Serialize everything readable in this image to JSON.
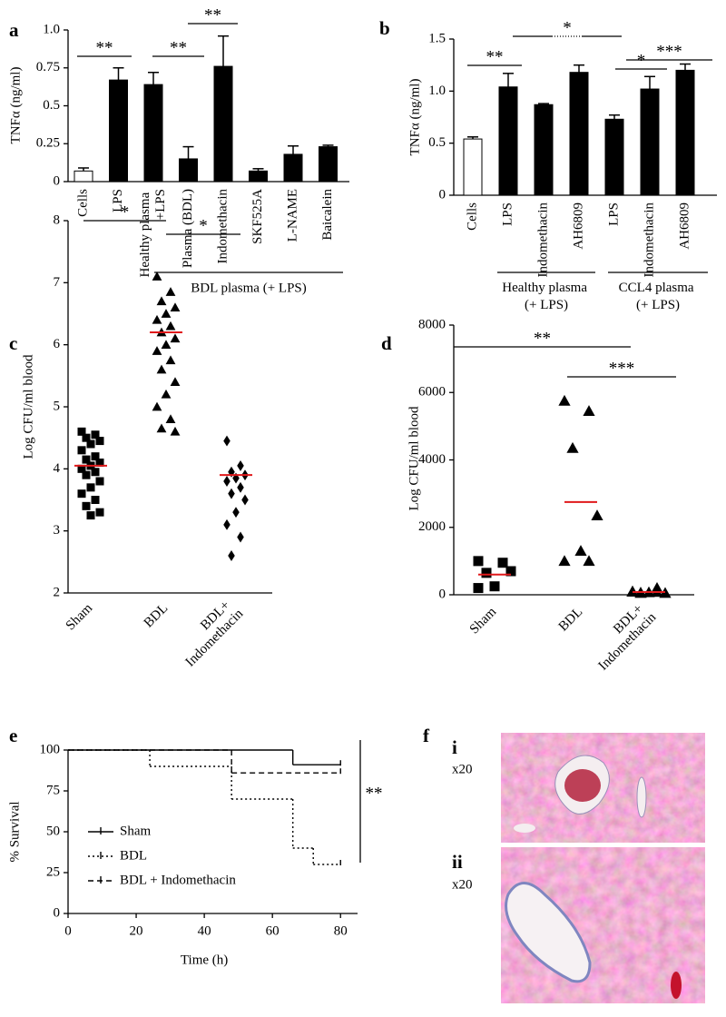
{
  "chart_data": [
    {
      "type": "bar",
      "panel_label": "a",
      "y_label": "TNFα (ng/ml)",
      "categories": [
        "Cells",
        "LPS",
        "Healthy plasma +LPS",
        "Plasma (BDL)",
        "Indomethacin",
        "SKF525A",
        "L-NAME",
        "Baicalein"
      ],
      "values": [
        0.07,
        0.67,
        0.64,
        0.15,
        0.76,
        0.07,
        0.18,
        0.23
      ],
      "errors": [
        0.02,
        0.08,
        0.08,
        0.08,
        0.2,
        0.015,
        0.055,
        0.01
      ],
      "colors": [
        "#ffffff",
        "#000000",
        "#000000",
        "#000000",
        "#000000",
        "#000000",
        "#000000",
        "#000000"
      ],
      "ylim": [
        0,
        1
      ],
      "yticks": [
        0,
        0.25,
        0.5,
        0.75,
        {
          "value": 1,
          "label": "1.0"
        }
      ],
      "groups": [
        "BDL plasma (+ LPS)"
      ],
      "annotations": [
        "**",
        "**",
        "**"
      ]
    },
    {
      "type": "bar",
      "panel_label": "b",
      "y_label": "TNFα (ng/ml)",
      "categories": [
        "Cells",
        "LPS",
        "Indomethacin",
        "AH6809",
        "LPS",
        "Indomethacin",
        "AH6809"
      ],
      "values": [
        0.54,
        1.04,
        0.87,
        1.18,
        0.73,
        1.02,
        1.2
      ],
      "errors": [
        0.02,
        0.13,
        0.01,
        0.07,
        0.04,
        0.12,
        0.06
      ],
      "colors": [
        "#ffffff",
        "#000000",
        "#000000",
        "#000000",
        "#000000",
        "#000000",
        "#000000"
      ],
      "ylim": [
        0,
        1.5
      ],
      "yticks": [
        0,
        0.5,
        {
          "value": 1,
          "label": "1.0"
        },
        1.5
      ],
      "groups": [
        "Healthy plasma (+ LPS)",
        "CCL4 plasma (+ LPS)"
      ],
      "annotations": [
        "**",
        "*",
        "***",
        "*"
      ]
    },
    {
      "type": "strip",
      "panel_label": "c",
      "y_label": "Log CFU/ml blood",
      "categories": [
        "Sham",
        "BDL",
        "BDL+ Indomethacin"
      ],
      "markers": [
        "square",
        "triangle",
        "diamond"
      ],
      "values": [
        [
          4.6,
          4.55,
          4.5,
          4.45,
          4.4,
          4.3,
          4.2,
          4.15,
          4.1,
          4.05,
          4.0,
          3.95,
          3.9,
          3.8,
          3.7,
          3.6,
          3.5,
          3.4,
          3.3,
          3.25
        ],
        [
          7.1,
          6.85,
          6.7,
          6.6,
          6.5,
          6.4,
          6.3,
          6.2,
          6.1,
          6.0,
          5.9,
          5.75,
          5.6,
          5.4,
          5.2,
          5.0,
          4.8,
          4.65,
          4.6
        ],
        [
          4.45,
          4.05,
          3.95,
          3.9,
          3.85,
          3.8,
          3.7,
          3.6,
          3.5,
          3.3,
          3.1,
          2.9,
          2.6
        ]
      ],
      "means": [
        4.05,
        6.2,
        3.9
      ],
      "mean_color": "#e0191b",
      "ylim": [
        2,
        8
      ],
      "yticks": [
        2,
        3,
        4,
        5,
        6,
        7,
        8
      ],
      "annotations": [
        "*",
        "*"
      ]
    },
    {
      "type": "strip",
      "panel_label": "d",
      "y_label": "Log CFU/ml blood",
      "categories": [
        "Sham",
        "BDL",
        "BDL+ Indomethacin"
      ],
      "markers": [
        "square",
        "triangle",
        "triangle"
      ],
      "values": [
        [
          1000,
          950,
          650,
          700,
          250,
          200
        ],
        [
          5750,
          5450,
          4350,
          2350,
          1300,
          1000,
          1000
        ],
        [
          100,
          80,
          60,
          50,
          70,
          90,
          200,
          50
        ]
      ],
      "means": [
        600,
        2750,
        80
      ],
      "mean_color": "#e0191b",
      "ylim": [
        0,
        8000
      ],
      "yticks": [
        0,
        2000,
        4000,
        6000,
        8000
      ],
      "annotations": [
        "**",
        "***"
      ]
    },
    {
      "type": "step",
      "panel_label": "e",
      "y_label": "% Survival",
      "x_label": "Time (h)",
      "series": [
        {
          "name": "Sham",
          "line_style": "solid",
          "x": [
            0,
            66,
            80
          ],
          "values": [
            100,
            91,
            91
          ]
        },
        {
          "name": "BDL",
          "line_style": "dotted",
          "x": [
            0,
            24,
            48,
            66,
            72,
            80
          ],
          "values": [
            100,
            90,
            70,
            40,
            30,
            30
          ]
        },
        {
          "name": "BDL + Indomethacin",
          "line_style": "dashed",
          "x": [
            0,
            48,
            80
          ],
          "values": [
            100,
            86,
            86
          ]
        }
      ],
      "xlim": [
        0,
        85
      ],
      "xticks": [
        0,
        20,
        40,
        60,
        80
      ],
      "ylim": [
        0,
        100
      ],
      "yticks": [
        0,
        25,
        50,
        75,
        100
      ],
      "annotations": [
        "**"
      ]
    }
  ],
  "figure_f": {
    "panel_label": "f",
    "images": [
      {
        "label": "i",
        "magnification": "x20"
      },
      {
        "label": "ii",
        "magnification": "x20"
      }
    ]
  }
}
